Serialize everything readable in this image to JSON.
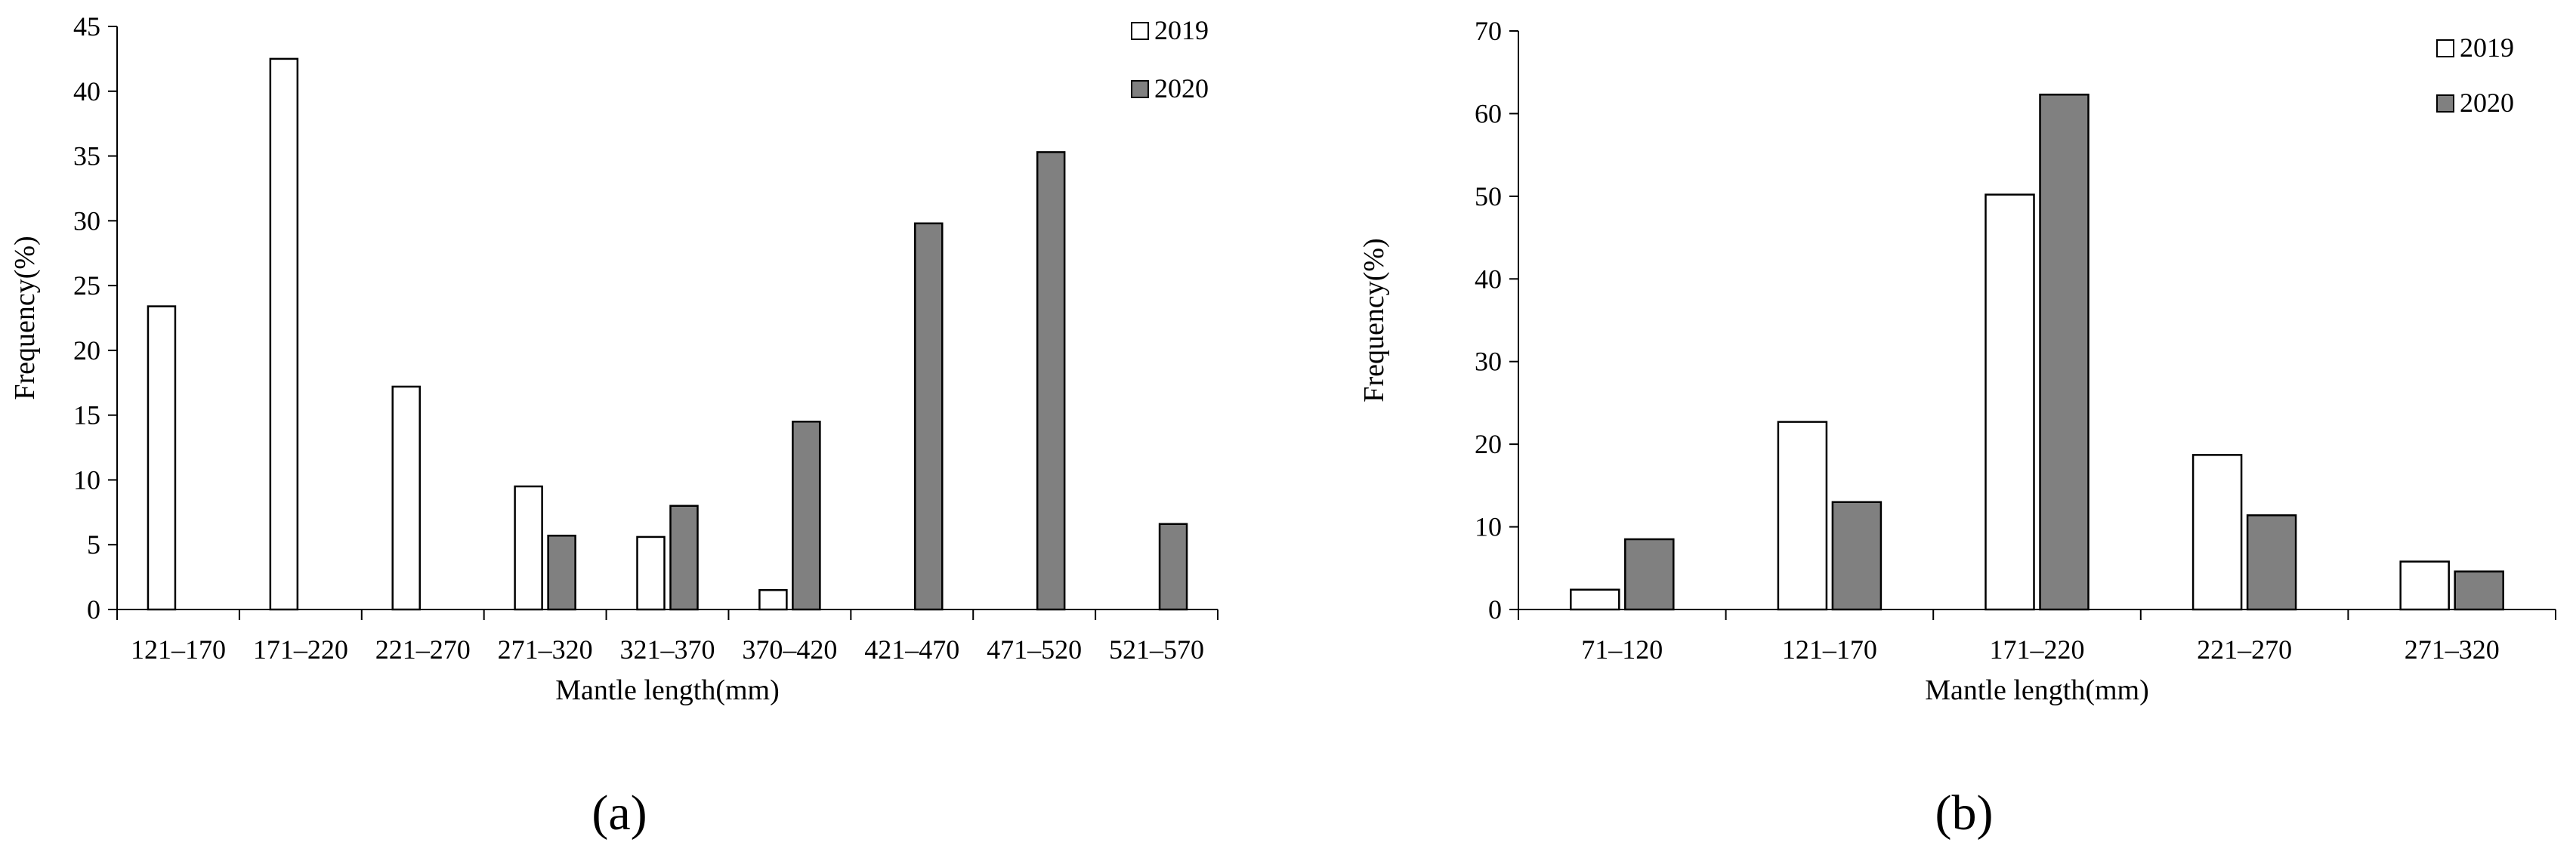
{
  "colors": {
    "series_2019_fill": "#ffffff",
    "series_2020_fill": "#808080",
    "bar_stroke": "#000000",
    "axis": "#000000"
  },
  "chart_data": [
    {
      "type": "bar",
      "panel_label": "(a)",
      "title": "",
      "xlabel": "Mantle length(mm)",
      "ylabel": "Frequency(%)",
      "ylim": [
        0,
        45
      ],
      "yticks": [
        0,
        5,
        10,
        15,
        20,
        25,
        30,
        35,
        40,
        45
      ],
      "grid": false,
      "legend_position": "top-right",
      "categories": [
        "121–170",
        "171–220",
        "221–270",
        "271–320",
        "321–370",
        "370–420",
        "421–470",
        "471–520",
        "521–570"
      ],
      "series": [
        {
          "name": "2019",
          "values": [
            23.4,
            42.5,
            17.2,
            9.5,
            5.6,
            1.5,
            0,
            0,
            0
          ]
        },
        {
          "name": "2020",
          "values": [
            0,
            0,
            0,
            5.7,
            8.0,
            14.5,
            29.8,
            35.3,
            6.6
          ]
        }
      ]
    },
    {
      "type": "bar",
      "panel_label": "(b)",
      "title": "",
      "xlabel": "Mantle length(mm)",
      "ylabel": "Frequency(%)",
      "ylim": [
        0,
        70
      ],
      "yticks": [
        0,
        10,
        20,
        30,
        40,
        50,
        60,
        70
      ],
      "grid": false,
      "legend_position": "top-right",
      "categories": [
        "71–120",
        "121–170",
        "171–220",
        "221–270",
        "271–320"
      ],
      "series": [
        {
          "name": "2019",
          "values": [
            2.4,
            22.7,
            50.2,
            18.7,
            5.8
          ]
        },
        {
          "name": "2020",
          "values": [
            8.5,
            13.0,
            62.3,
            11.4,
            4.6
          ]
        }
      ]
    }
  ]
}
